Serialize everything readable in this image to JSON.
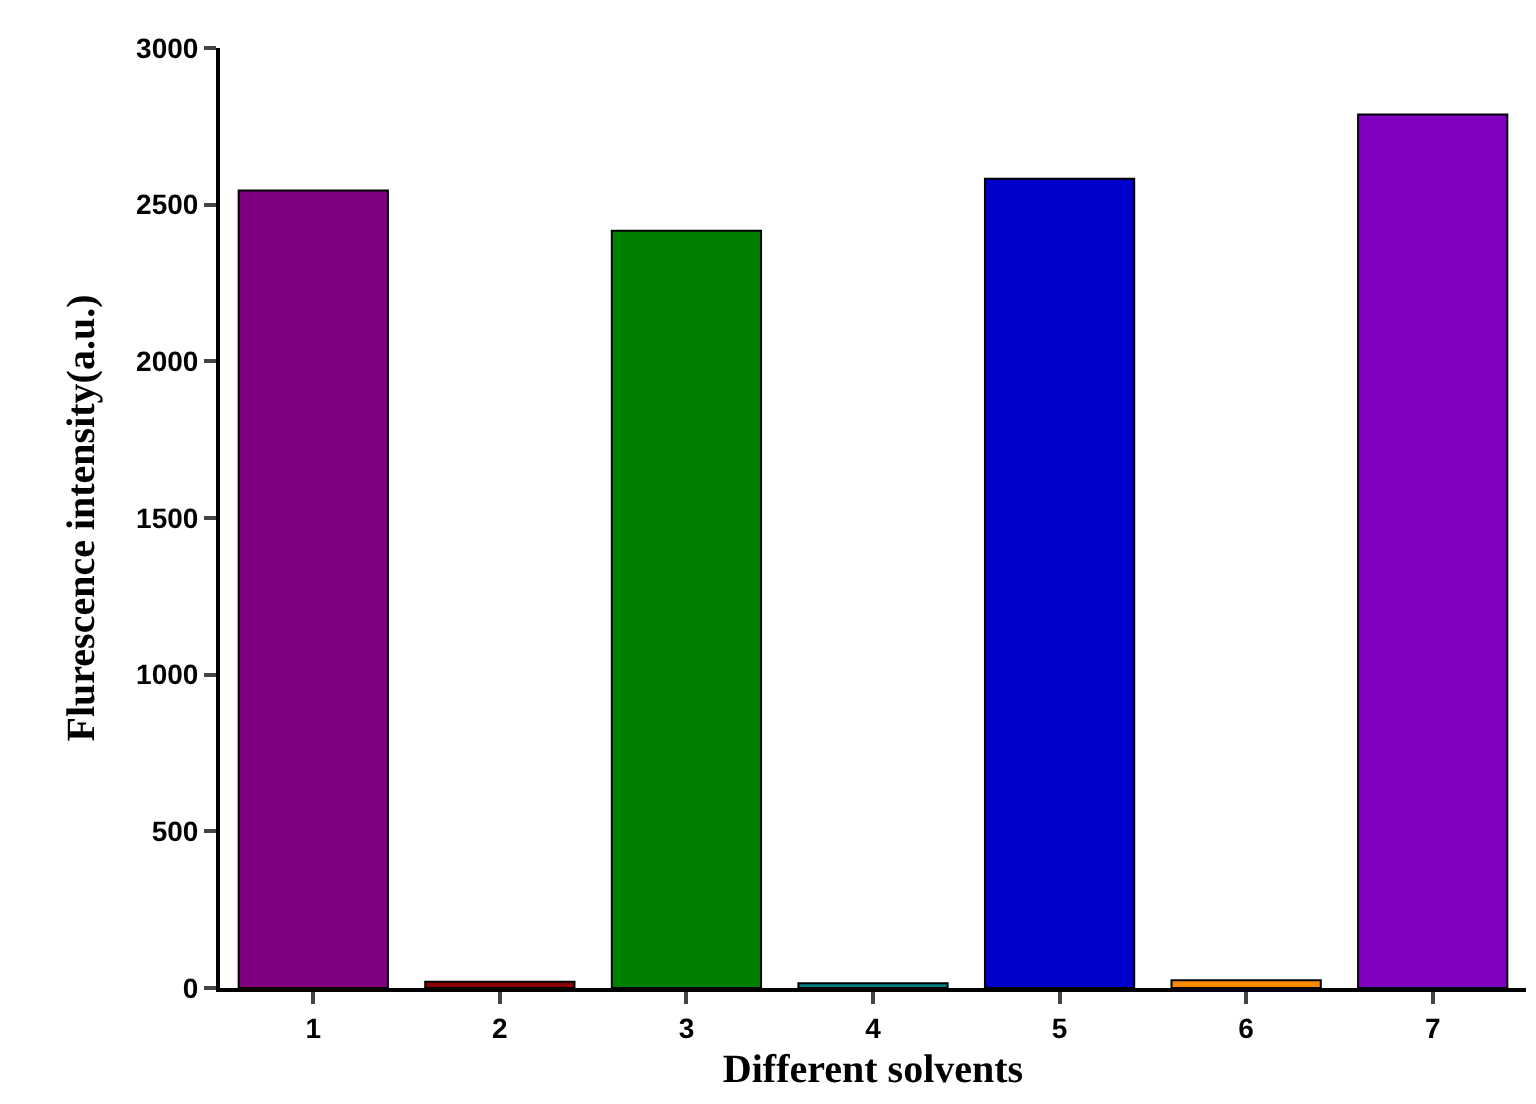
{
  "chart_data": {
    "type": "bar",
    "xlabel": "Different solvents",
    "ylabel": "Flurescence intensity(a.u.)",
    "categories": [
      "1",
      "2",
      "3",
      "4",
      "5",
      "6",
      "7"
    ],
    "values": [
      2545,
      20,
      2417,
      15,
      2583,
      25,
      2788
    ],
    "colors": [
      "#800080",
      "#8b0000",
      "#008000",
      "#008080",
      "#0000cd",
      "#ff8c00",
      "#8000c0"
    ],
    "ylim": [
      0,
      3000
    ],
    "yticks": [
      0,
      500,
      1000,
      1500,
      2000,
      2500,
      3000
    ]
  }
}
